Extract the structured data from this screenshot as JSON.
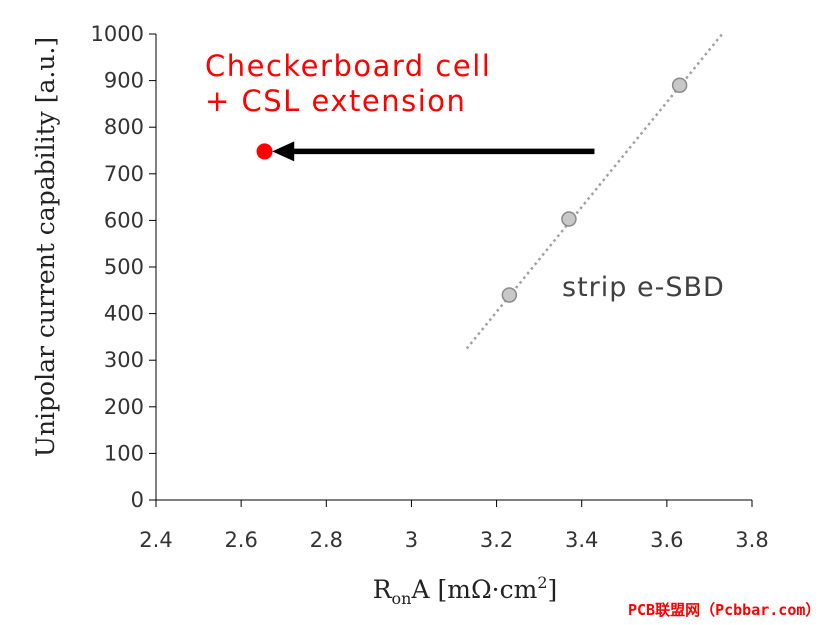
{
  "chart_data": {
    "type": "scatter",
    "xlabel": {
      "main": "R",
      "sub": "on",
      "rest": "A [mΩ·cm",
      "sup": "2",
      "end": "]"
    },
    "ylabel": "Unipolar current capability [a.u.]",
    "xlim": [
      2.4,
      3.8
    ],
    "ylim": [
      0,
      1000
    ],
    "xticks": [
      "2.4",
      "2.6",
      "2.8",
      "3",
      "3.2",
      "3.4",
      "3.6",
      "3.8"
    ],
    "xtick_values": [
      2.4,
      2.6,
      2.8,
      3.0,
      3.2,
      3.4,
      3.6,
      3.8
    ],
    "yticks": [
      "0",
      "100",
      "200",
      "300",
      "400",
      "500",
      "600",
      "700",
      "800",
      "900",
      "1000"
    ],
    "ytick_values": [
      0,
      100,
      200,
      300,
      400,
      500,
      600,
      700,
      800,
      900,
      1000
    ],
    "grid": false,
    "series": [
      {
        "name": "strip e-SBD",
        "color": "#c8c8c8",
        "marker": "circle",
        "x": [
          3.23,
          3.37,
          3.63
        ],
        "y": [
          440,
          603,
          890
        ]
      },
      {
        "name": "Checkerboard cell + CSL extension",
        "color": "#ff0000",
        "marker": "circle",
        "x": [
          2.655
        ],
        "y": [
          748
        ]
      }
    ],
    "trendline": {
      "style": "dotted",
      "color": "#a0a0a0",
      "x": [
        3.13,
        3.73
      ],
      "y": [
        325,
        1000
      ]
    },
    "arrow": {
      "from_x": 3.43,
      "to_x": 2.72,
      "y": 748,
      "color": "#000000"
    },
    "annotations": {
      "red_line1": "Checkerboard cell",
      "red_line2": "+ CSL extension",
      "gray": "strip e-SBD"
    }
  },
  "watermark": "PCB联盟网（Pcbbar.com）"
}
